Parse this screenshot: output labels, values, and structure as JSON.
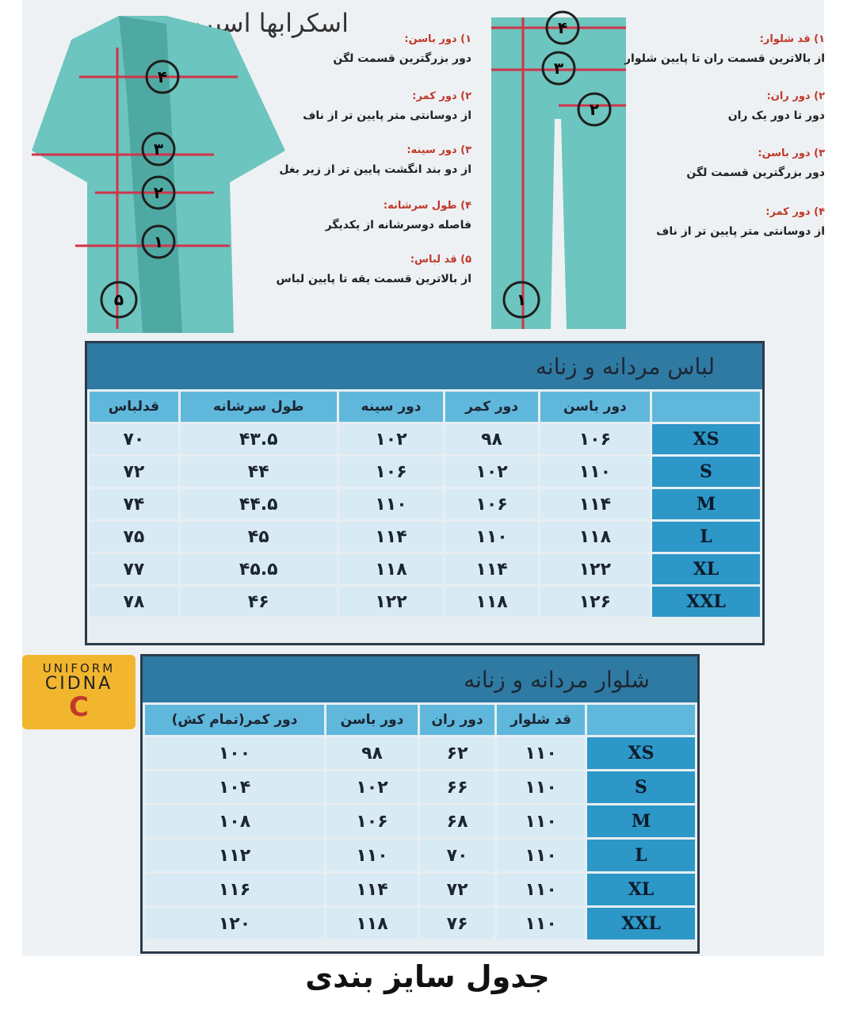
{
  "header": {
    "note": "اسکرابها اسپرت هستند"
  },
  "shirt": {
    "markers": [
      "۴",
      "۳",
      "۲",
      "۱",
      "۵"
    ],
    "notes": [
      {
        "title": "۱) دور باسن:",
        "text": "دور بزرگترین قسمت لگن"
      },
      {
        "title": "۲) دور کمر:",
        "text": "از دوسانتی متر پایین تر از ناف"
      },
      {
        "title": "۳) دور سینه:",
        "text": "از دو بند انگشت پایین تر از زیر بغل"
      },
      {
        "title": "۴) طول سرشانه:",
        "text": "فاصله دوسرشانه از یکدیگر"
      },
      {
        "title": "۵) قد لباس:",
        "text": "از بالاترین قسمت یقه تا پایین لباس"
      }
    ]
  },
  "pants": {
    "markers": [
      "۴",
      "۳",
      "۲",
      "۱"
    ],
    "notes": [
      {
        "title": "۱) قد شلوار:",
        "text": "از بالاترین قسمت ران تا پایین شلوار"
      },
      {
        "title": "۲) دور ران:",
        "text": "دور تا دور یک ران"
      },
      {
        "title": "۳) دور باسن:",
        "text": "دور بزرگترین قسمت لگن"
      },
      {
        "title": "۴) دور کمر:",
        "text": "از دوسانتی متر پایین تر از ناف"
      }
    ]
  },
  "shirt_table": {
    "title": "لباس مردانه و زنانه",
    "headers": [
      "دور باسن",
      "دور کمر",
      "دور سینه",
      "طول سرشانه",
      "قدلباس"
    ],
    "rows": [
      {
        "size": "XS",
        "cells": [
          "۱۰۶",
          "۹۸",
          "۱۰۲",
          "۴۳.۵",
          "۷۰"
        ]
      },
      {
        "size": "S",
        "cells": [
          "۱۱۰",
          "۱۰۲",
          "۱۰۶",
          "۴۴",
          "۷۲"
        ]
      },
      {
        "size": "M",
        "cells": [
          "۱۱۴",
          "۱۰۶",
          "۱۱۰",
          "۴۴.۵",
          "۷۴"
        ]
      },
      {
        "size": "L",
        "cells": [
          "۱۱۸",
          "۱۱۰",
          "۱۱۴",
          "۴۵",
          "۷۵"
        ]
      },
      {
        "size": "XL",
        "cells": [
          "۱۲۲",
          "۱۱۴",
          "۱۱۸",
          "۴۵.۵",
          "۷۷"
        ]
      },
      {
        "size": "XXL",
        "cells": [
          "۱۲۶",
          "۱۱۸",
          "۱۲۲",
          "۴۶",
          "۷۸"
        ]
      }
    ]
  },
  "logo": {
    "line1": "UNIFORM",
    "line2": "CIDNA",
    "mark": "C"
  },
  "pants_table": {
    "title": "شلوار مردانه و زنانه",
    "headers": [
      "قد شلوار",
      "دور ران",
      "دور باسن",
      "دور کمر(تمام کش)"
    ],
    "rows": [
      {
        "size": "XS",
        "cells": [
          "۱۱۰",
          "۶۲",
          "۹۸",
          "۱۰۰"
        ]
      },
      {
        "size": "S",
        "cells": [
          "۱۱۰",
          "۶۶",
          "۱۰۲",
          "۱۰۴"
        ]
      },
      {
        "size": "M",
        "cells": [
          "۱۱۰",
          "۶۸",
          "۱۰۶",
          "۱۰۸"
        ]
      },
      {
        "size": "L",
        "cells": [
          "۱۱۰",
          "۷۰",
          "۱۱۰",
          "۱۱۲"
        ]
      },
      {
        "size": "XL",
        "cells": [
          "۱۱۰",
          "۷۲",
          "۱۱۴",
          "۱۱۶"
        ]
      },
      {
        "size": "XXL",
        "cells": [
          "۱۱۰",
          "۷۶",
          "۱۱۸",
          "۱۲۰"
        ]
      }
    ]
  },
  "footer": {
    "title": "جدول سایز بندی"
  }
}
